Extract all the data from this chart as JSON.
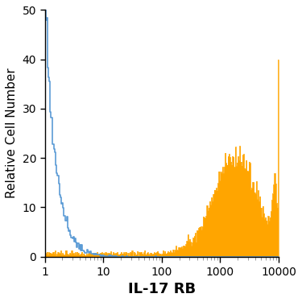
{
  "title": "",
  "xlabel": "IL-17 RB",
  "ylabel": "Relative Cell Number",
  "xlim": [
    1,
    10000
  ],
  "ylim": [
    0,
    50
  ],
  "yticks": [
    0,
    10,
    20,
    30,
    40,
    50
  ],
  "blue_color": "#5B9BD5",
  "orange_color": "#FFA500",
  "background_color": "#FFFFFF",
  "xlabel_fontsize": 13,
  "ylabel_fontsize": 11,
  "tick_fontsize": 10
}
